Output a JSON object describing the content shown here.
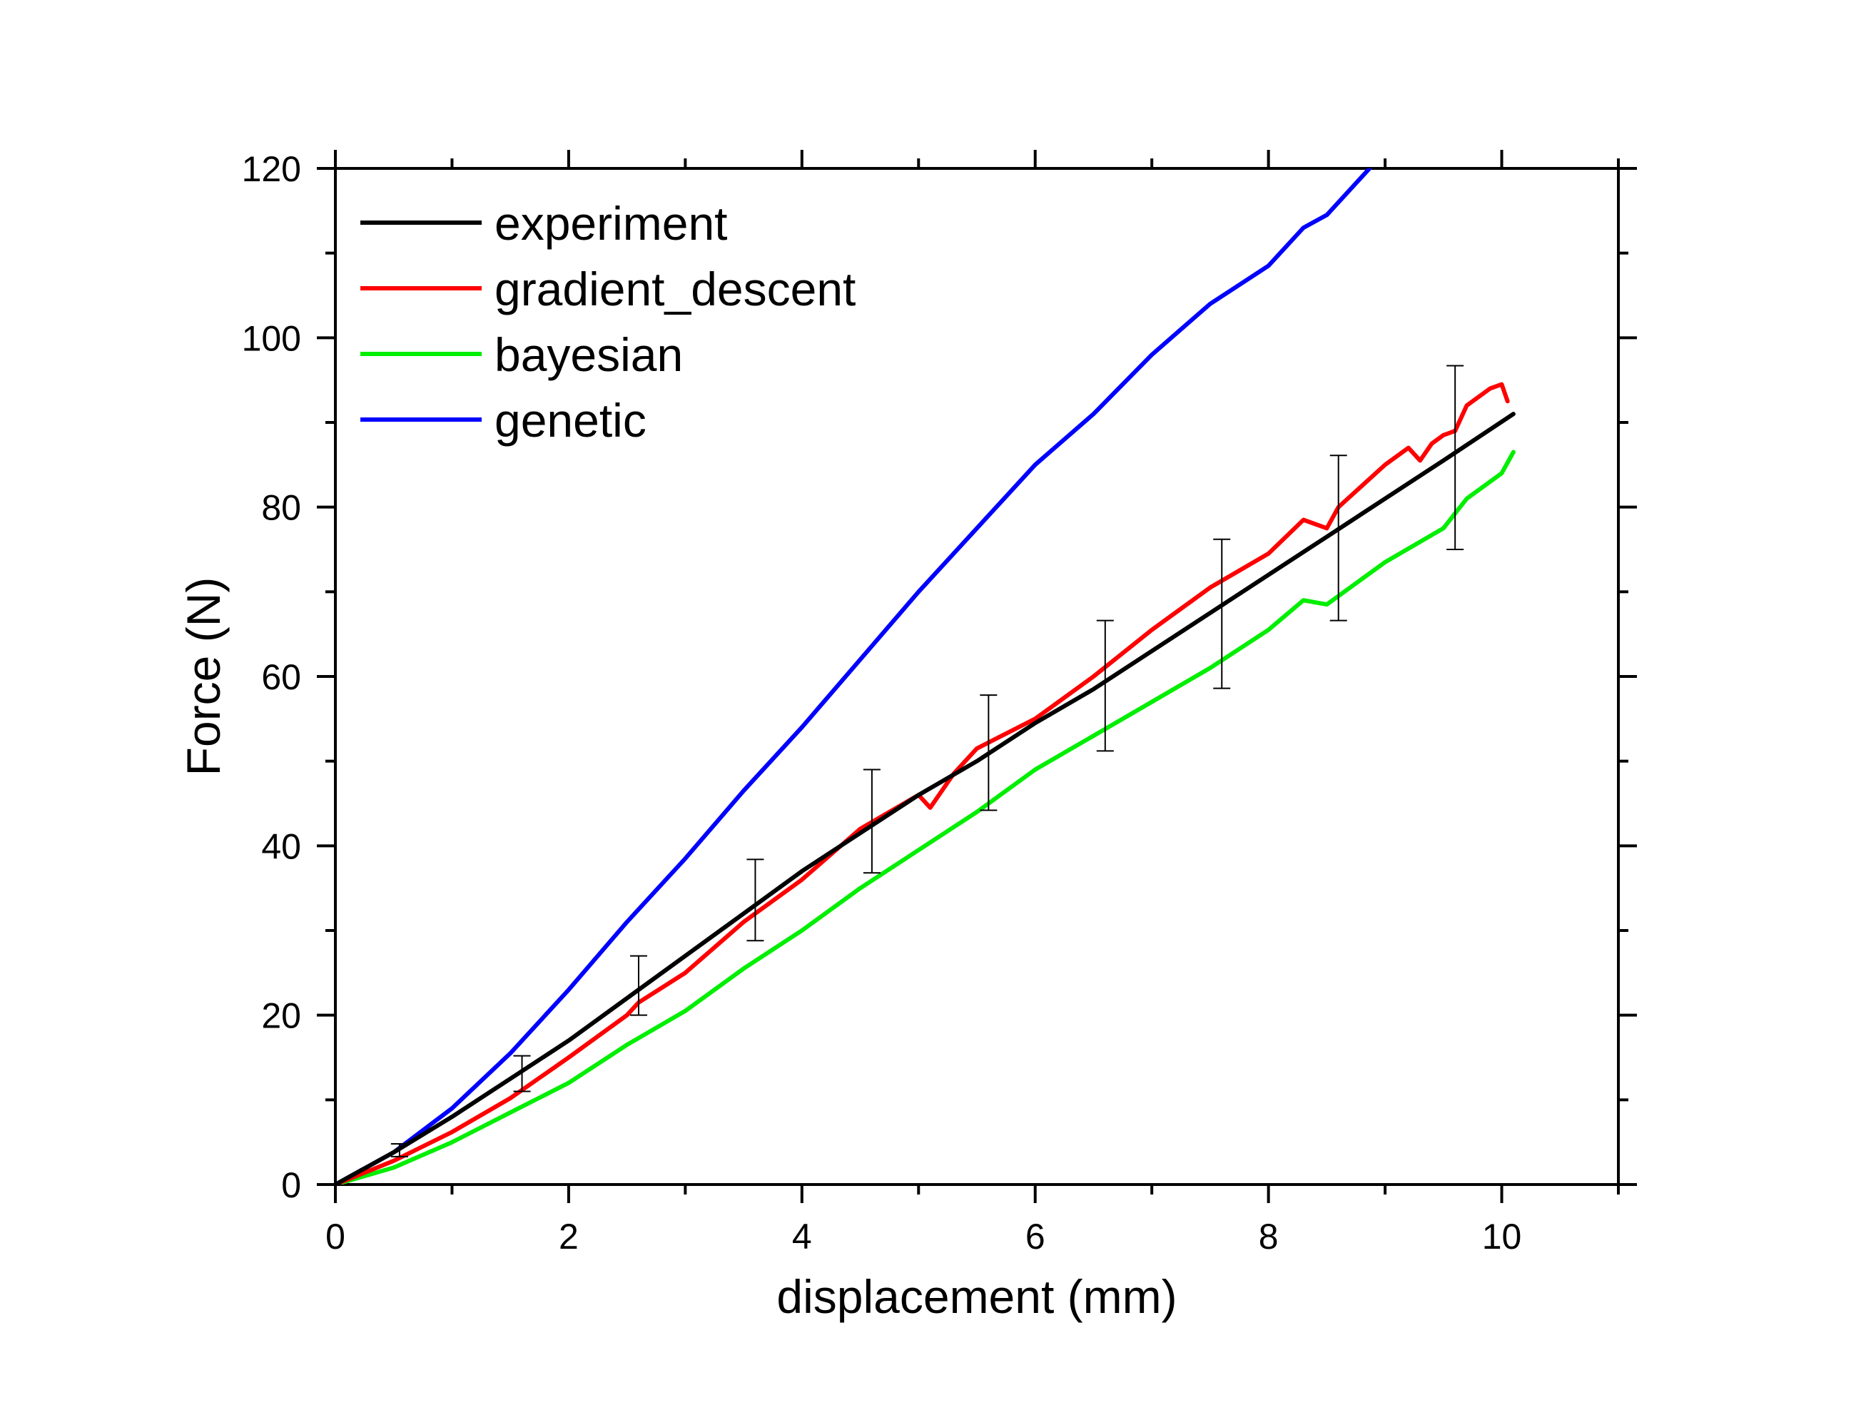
{
  "chart_data": {
    "type": "line",
    "xlabel": "displacement (mm)",
    "ylabel": "Force (N)",
    "xlim": [
      0,
      11
    ],
    "ylim": [
      0,
      120
    ],
    "x_ticks": [
      0,
      2,
      4,
      6,
      8,
      10
    ],
    "y_ticks": [
      0,
      20,
      40,
      60,
      80,
      100,
      120
    ],
    "x_tick_labels": [
      "0",
      "2",
      "4",
      "6",
      "8",
      "10"
    ],
    "y_tick_labels": [
      "0",
      "20",
      "40",
      "60",
      "80",
      "100",
      "120"
    ],
    "grid": false,
    "legend_position": "top-left",
    "series": [
      {
        "name": "experiment",
        "color": "#000000",
        "x": [
          0,
          0.5,
          1,
          1.5,
          2,
          2.5,
          3,
          3.5,
          4,
          4.5,
          5,
          5.5,
          6,
          6.5,
          7,
          7.5,
          8,
          8.5,
          9,
          9.5,
          10.1
        ],
        "y": [
          0,
          3.8,
          8,
          12.5,
          17,
          22,
          27,
          32,
          37,
          41.5,
          46,
          50,
          54.5,
          58.5,
          63,
          67.5,
          72,
          76.5,
          81,
          85.5,
          91
        ]
      },
      {
        "name": "gradient_descent",
        "color": "#ff0000",
        "x": [
          0,
          0.5,
          1,
          1.5,
          2,
          2.5,
          2.6,
          3,
          3.5,
          4,
          4.5,
          5,
          5.1,
          5.3,
          5.5,
          6,
          6.5,
          7,
          7.5,
          8,
          8.3,
          8.5,
          8.6,
          8.8,
          9,
          9.2,
          9.3,
          9.4,
          9.5,
          9.6,
          9.7,
          9.9,
          10,
          10.05
        ],
        "y": [
          0,
          2.8,
          6.2,
          10.2,
          15,
          20,
          21.5,
          25,
          31,
          36,
          42,
          46,
          44.5,
          48.5,
          51.5,
          55,
          60,
          65.5,
          70.5,
          74.5,
          78.5,
          77.5,
          80,
          82.5,
          85,
          87,
          85.5,
          87.5,
          88.5,
          89,
          92,
          94,
          94.5,
          92.5
        ]
      },
      {
        "name": "bayesian",
        "color": "#00ee00",
        "x": [
          0,
          0.5,
          1,
          1.5,
          2,
          2.5,
          3,
          3.5,
          4,
          4.5,
          5,
          5.5,
          6,
          6.5,
          7,
          7.5,
          8,
          8.3,
          8.5,
          9,
          9.5,
          9.7,
          10,
          10.1
        ],
        "y": [
          0,
          2,
          5,
          8.5,
          12,
          16.5,
          20.5,
          25.5,
          30,
          35,
          39.5,
          44,
          49,
          53,
          57,
          61,
          65.5,
          69,
          68.5,
          73.5,
          77.5,
          81,
          84,
          86.5
        ]
      },
      {
        "name": "genetic",
        "color": "#0000ff",
        "x": [
          0,
          0.5,
          1,
          1.5,
          2,
          2.5,
          3,
          3.5,
          4,
          4.5,
          5,
          5.5,
          6,
          6.5,
          7,
          7.5,
          8,
          8.3,
          8.5,
          8.9
        ],
        "y": [
          0,
          3.8,
          9,
          15.5,
          23,
          31,
          38.5,
          46.5,
          54,
          62,
          70,
          77.5,
          85,
          91,
          98,
          104,
          108.5,
          113,
          114.5,
          120.5
        ]
      }
    ],
    "error_bars": {
      "series": "experiment",
      "x": [
        0.55,
        1.6,
        2.6,
        3.6,
        4.6,
        5.6,
        6.6,
        7.6,
        8.6,
        9.6
      ],
      "lower": [
        3.3,
        11.0,
        20.0,
        28.8,
        36.8,
        44.2,
        51.2,
        58.6,
        66.6,
        75.0
      ],
      "upper": [
        4.8,
        15.2,
        27.0,
        38.4,
        49.0,
        57.8,
        66.6,
        76.2,
        86.1,
        96.7
      ]
    }
  }
}
